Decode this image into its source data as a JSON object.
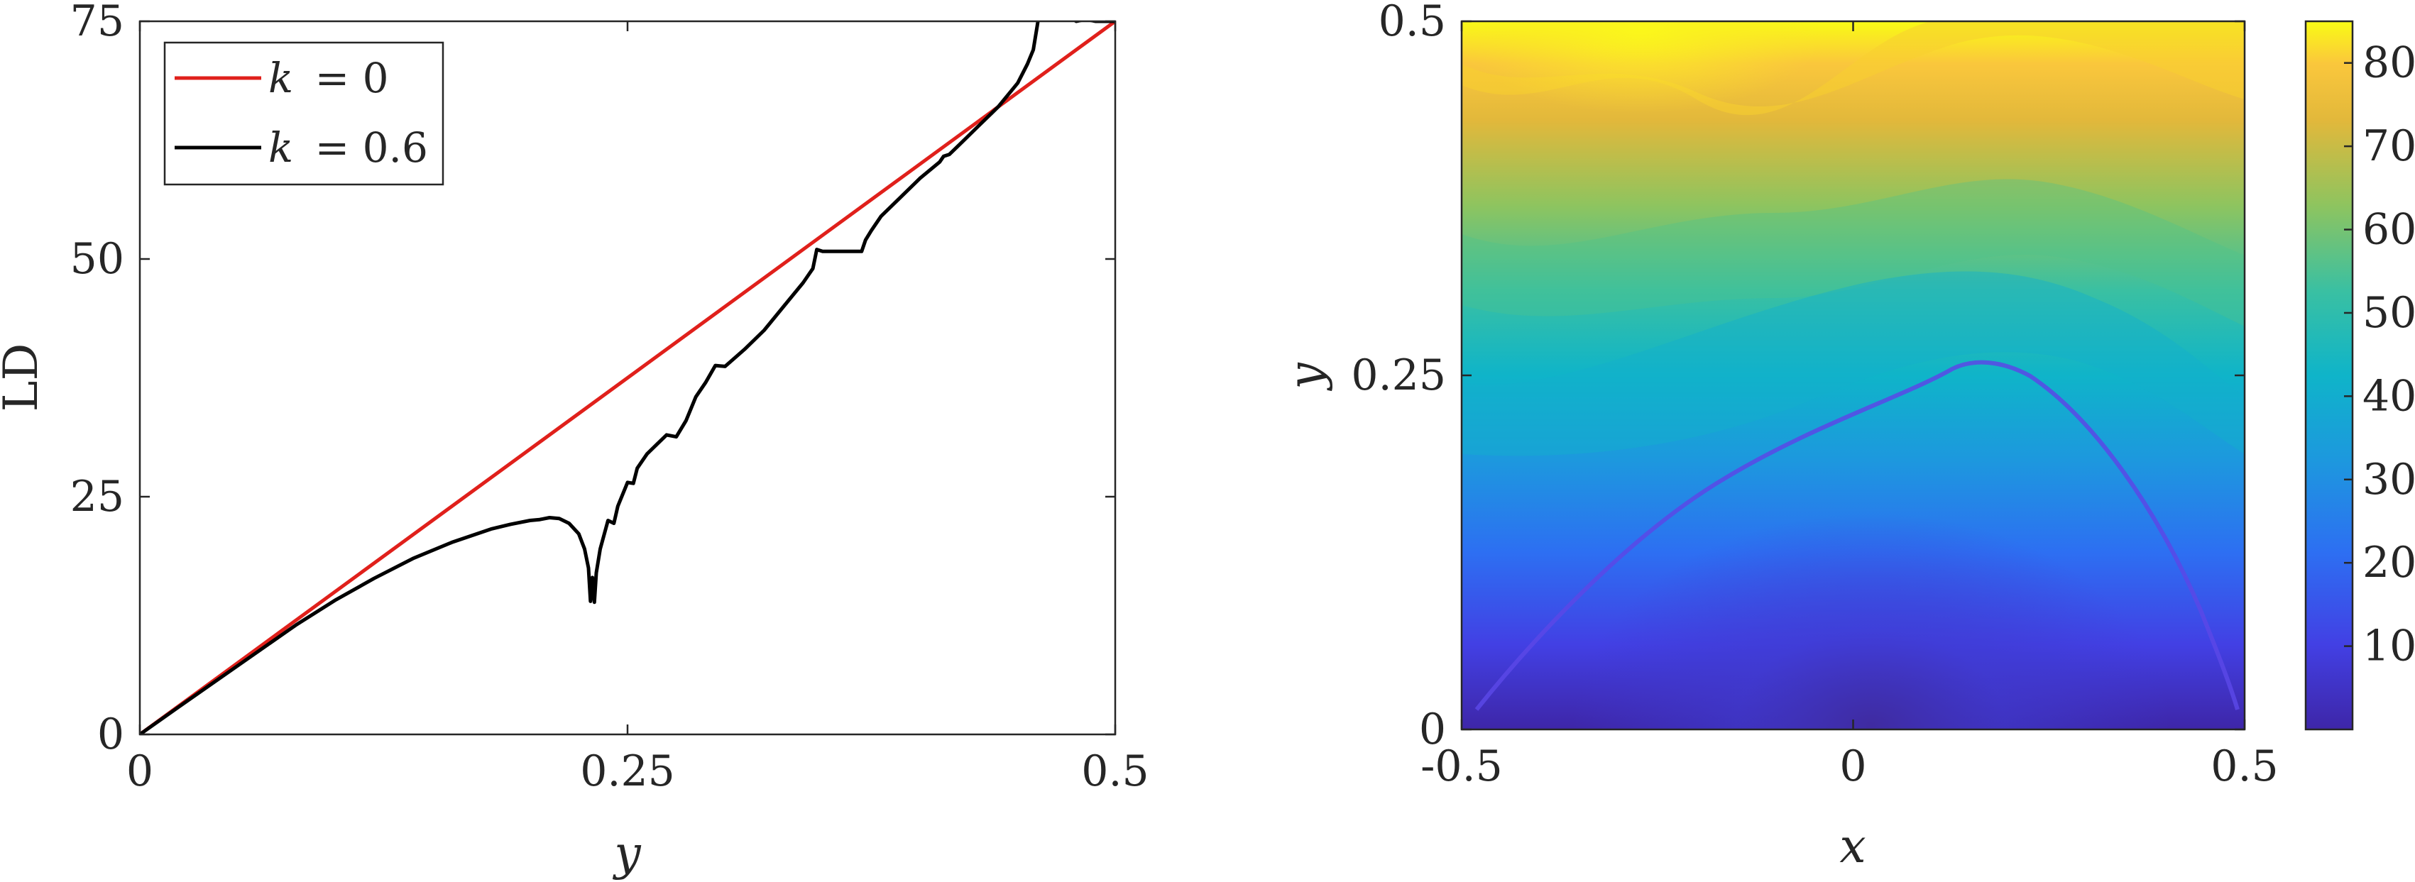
{
  "chart_data": [
    {
      "type": "line",
      "xlabel": "y",
      "ylabel": "LD",
      "xlim": [
        0,
        0.5
      ],
      "ylim": [
        0,
        75
      ],
      "xticks": [
        "0",
        "0.25",
        "0.5"
      ],
      "yticks": [
        "0",
        "25",
        "50",
        "75"
      ],
      "legend": {
        "placement": "top-left",
        "box": true
      },
      "series": [
        {
          "name": "k = 0",
          "legend_var": "k",
          "legend_value": "= 0",
          "color": "#e0201b",
          "x": [
            0,
            0.5
          ],
          "y": [
            0,
            75
          ]
        },
        {
          "name": "k = 0.6",
          "legend_var": "k",
          "legend_value": "= 0.6",
          "color": "#000000",
          "x": [
            0,
            0.02,
            0.05,
            0.08,
            0.1,
            0.12,
            0.14,
            0.16,
            0.18,
            0.19,
            0.2,
            0.205,
            0.21,
            0.215,
            0.22,
            0.225,
            0.228,
            0.23,
            0.231,
            0.232,
            0.233,
            0.234,
            0.236,
            0.238,
            0.24,
            0.243,
            0.245,
            0.25,
            0.253,
            0.255,
            0.26,
            0.265,
            0.27,
            0.275,
            0.28,
            0.283,
            0.285,
            0.29,
            0.295,
            0.3,
            0.31,
            0.32,
            0.33,
            0.34,
            0.345,
            0.347,
            0.35,
            0.36,
            0.37,
            0.372,
            0.375,
            0.38,
            0.39,
            0.4,
            0.41,
            0.412,
            0.415,
            0.42,
            0.43,
            0.44,
            0.45,
            0.455,
            0.458,
            0.46,
            0.461,
            0.465,
            0.47,
            0.475,
            0.48,
            0.485,
            0.49,
            0.5
          ],
          "y": [
            0,
            2.9,
            7.2,
            11.5,
            14.1,
            16.4,
            18.5,
            20.2,
            21.6,
            22.1,
            22.5,
            22.6,
            22.8,
            22.7,
            22.2,
            21.1,
            19.5,
            17.5,
            14.0,
            16.5,
            13.9,
            17.0,
            19.5,
            21.0,
            22.5,
            22.2,
            24.0,
            26.5,
            26.4,
            28.0,
            29.5,
            30.5,
            31.5,
            31.3,
            33.0,
            34.5,
            35.5,
            37.0,
            38.8,
            38.7,
            40.5,
            42.5,
            45.0,
            47.5,
            49.0,
            51.0,
            50.8,
            50.8,
            50.8,
            52.0,
            53.0,
            54.5,
            56.5,
            58.5,
            60.2,
            60.8,
            61.0,
            62.0,
            64.0,
            66.0,
            68.5,
            70.5,
            72.0,
            74.5,
            75.8,
            75.5,
            75.3,
            75.7,
            75.0,
            75.2,
            75.0,
            75.0
          ]
        }
      ]
    },
    {
      "type": "heatmap",
      "xlabel": "x",
      "ylabel": "y",
      "xlim": [
        -0.5,
        0.5
      ],
      "ylim": [
        0,
        0.5
      ],
      "xticks": [
        "-0.5",
        "0",
        "0.5"
      ],
      "yticks": [
        "0",
        "0.25",
        "0.5"
      ],
      "colorscale": "parula",
      "colorbar": {
        "range": [
          0,
          85
        ],
        "ticks": [
          "10",
          "20",
          "30",
          "40",
          "50",
          "60",
          "70",
          "80"
        ]
      }
    }
  ]
}
